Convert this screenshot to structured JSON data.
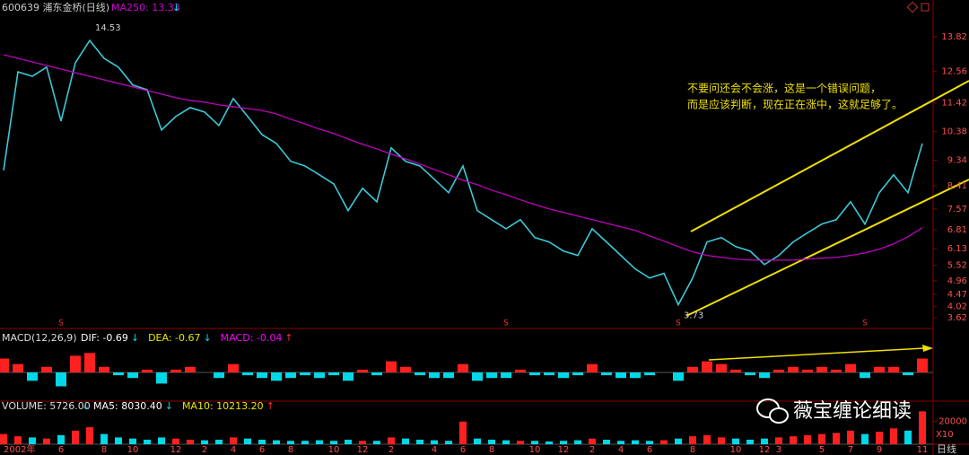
{
  "chart_data": [
    {
      "type": "line",
      "title": "600639 浦东金桥(日线)",
      "series": [
        {
          "color": "#3cc8d8",
          "values": [
            8.97,
            12.55,
            12.39,
            12.72,
            10.76,
            12.88,
            13.69,
            13.04,
            12.72,
            12.07,
            11.9,
            10.44,
            10.93,
            11.25,
            11.09,
            10.6,
            11.58,
            10.93,
            10.27,
            9.95,
            9.3,
            9.13,
            8.81,
            8.48,
            7.51,
            8.32,
            7.83,
            9.79,
            9.3,
            9.13,
            8.65,
            8.16,
            9.13,
            7.51,
            7.18,
            6.85,
            7.18,
            6.53,
            6.37,
            6.04,
            5.88,
            6.85,
            6.37,
            5.88,
            5.39,
            5.06,
            5.23,
            4.09,
            5.06,
            6.37,
            6.53,
            6.2,
            6.04,
            5.55,
            5.88,
            6.37,
            6.7,
            7.02,
            7.18,
            7.83,
            7.02,
            8.16,
            8.81,
            8.16,
            9.95
          ]
        },
        {
          "name": "MA250: 13.33",
          "trend": "↓",
          "color": "#c000c0",
          "values": [
            13.17,
            13.04,
            12.91,
            12.78,
            12.65,
            12.52,
            12.39,
            12.26,
            12.13,
            12.0,
            11.87,
            11.74,
            11.61,
            11.51,
            11.45,
            11.35,
            11.28,
            11.22,
            11.15,
            11.02,
            10.83,
            10.66,
            10.47,
            10.31,
            10.11,
            9.92,
            9.75,
            9.56,
            9.39,
            9.2,
            9.0,
            8.81,
            8.61,
            8.45,
            8.25,
            8.09,
            7.9,
            7.73,
            7.57,
            7.44,
            7.31,
            7.18,
            7.05,
            6.92,
            6.79,
            6.59,
            6.4,
            6.2,
            6.01,
            5.88,
            5.81,
            5.75,
            5.71,
            5.71,
            5.71,
            5.71,
            5.75,
            5.78,
            5.81,
            5.88,
            5.97,
            6.11,
            6.3,
            6.56,
            6.89
          ]
        }
      ],
      "ylim": [
        3.26,
        15.16
      ],
      "yticks": [
        13.82,
        12.56,
        11.42,
        10.38,
        9.34,
        8.41,
        7.57,
        6.81,
        6.13,
        5.52,
        4.96,
        4.47,
        4.02,
        3.62
      ],
      "annotations": [
        "14.53",
        "3.73"
      ],
      "note": [
        "不要问还会不会涨，这是一个错误问题，",
        "而是应该判断，现在正在涨中，这就足够了。"
      ],
      "signals": [
        null,
        null,
        null,
        null,
        "S",
        null,
        null,
        null,
        null,
        null,
        null,
        null,
        null,
        null,
        null,
        null,
        null,
        null,
        null,
        null,
        null,
        null,
        null,
        null,
        null,
        null,
        null,
        null,
        null,
        null,
        null,
        null,
        null,
        null,
        null,
        "S",
        null,
        null,
        null,
        null,
        null,
        null,
        null,
        null,
        null,
        null,
        null,
        "S",
        null,
        null,
        null,
        null,
        null,
        null,
        null,
        null,
        null,
        null,
        null,
        null,
        "S",
        null,
        null,
        null,
        null
      ]
    },
    {
      "type": "bar",
      "title": "MACD(12,26,9)",
      "indicators": [
        {
          "label": "DIF: -0.69",
          "arrow": "↓",
          "color": "#ffffff"
        },
        {
          "label": "DEA: -0.67",
          "arrow": "↓",
          "color": "#e8e800"
        },
        {
          "label": "MACD: -0.04",
          "arrow": "↑",
          "color": "#ff00ff"
        }
      ],
      "colors": {
        "up": "#ff2020",
        "down": "#00d8e8"
      },
      "values": [
        0.5,
        0.3,
        -0.3,
        0.2,
        -0.5,
        0.6,
        0.7,
        0.2,
        -0.1,
        -0.2,
        0.1,
        -0.4,
        0.1,
        0.2,
        0.0,
        -0.2,
        0.3,
        -0.1,
        -0.2,
        -0.3,
        -0.2,
        -0.1,
        -0.2,
        -0.1,
        -0.3,
        0.1,
        -0.1,
        0.4,
        0.2,
        -0.1,
        -0.2,
        -0.2,
        0.3,
        -0.3,
        -0.2,
        -0.2,
        0.1,
        -0.1,
        -0.1,
        -0.2,
        -0.1,
        0.3,
        -0.1,
        -0.2,
        -0.2,
        -0.1,
        0.0,
        -0.3,
        0.2,
        0.4,
        0.3,
        0.1,
        -0.1,
        -0.2,
        0.1,
        0.2,
        0.1,
        0.2,
        0.1,
        0.3,
        -0.2,
        0.2,
        0.2,
        -0.1,
        0.5
      ],
      "ylim": [
        -1,
        1
      ]
    },
    {
      "type": "bar",
      "title": "VOLUME: 5726.00",
      "title_arrow": "↓",
      "indicators": [
        {
          "label": "MA5: 8030.40",
          "arrow": "↓",
          "color": "#ffffff"
        },
        {
          "label": "MA10: 10213.20",
          "arrow": "↑",
          "color": "#e8e800"
        }
      ],
      "colors": {
        "up": "#ff2020",
        "down": "#00d8e8"
      },
      "categories": [
        "2002年",
        null,
        null,
        null,
        "6",
        null,
        null,
        "8",
        null,
        "10",
        null,
        null,
        "12",
        null,
        "2",
        null,
        "4",
        null,
        "6",
        null,
        "8",
        null,
        null,
        "10",
        null,
        "12",
        null,
        "2",
        null,
        null,
        "4",
        null,
        "6",
        null,
        "8",
        null,
        null,
        "10",
        null,
        "12",
        null,
        "2",
        null,
        "4",
        null,
        "6",
        null,
        null,
        "8",
        null,
        null,
        "10",
        null,
        "12",
        "3",
        null,
        null,
        "5",
        null,
        "7",
        null,
        "9",
        null,
        null,
        "11"
      ],
      "values": [
        9000,
        7000,
        6000,
        5000,
        8000,
        12000,
        15000,
        9000,
        6000,
        5000,
        4000,
        6000,
        5000,
        4000,
        3500,
        4000,
        6000,
        5000,
        4000,
        3500,
        3000,
        3000,
        3500,
        3000,
        4000,
        3000,
        3000,
        6000,
        5000,
        4000,
        3500,
        3000,
        20000,
        5000,
        4000,
        3500,
        3000,
        3000,
        2500,
        3000,
        3500,
        5000,
        4000,
        3000,
        3500,
        3000,
        3500,
        5000,
        7000,
        8000,
        6000,
        5000,
        4000,
        5000,
        6000,
        7000,
        8000,
        9000,
        10000,
        12000,
        9000,
        11000,
        14000,
        12000,
        29000
      ],
      "ylim": [
        0,
        29300
      ],
      "yticks": [
        20000
      ],
      "unit_label": "X10",
      "period": "日线"
    }
  ],
  "watermark": "薇宝缠论细读"
}
